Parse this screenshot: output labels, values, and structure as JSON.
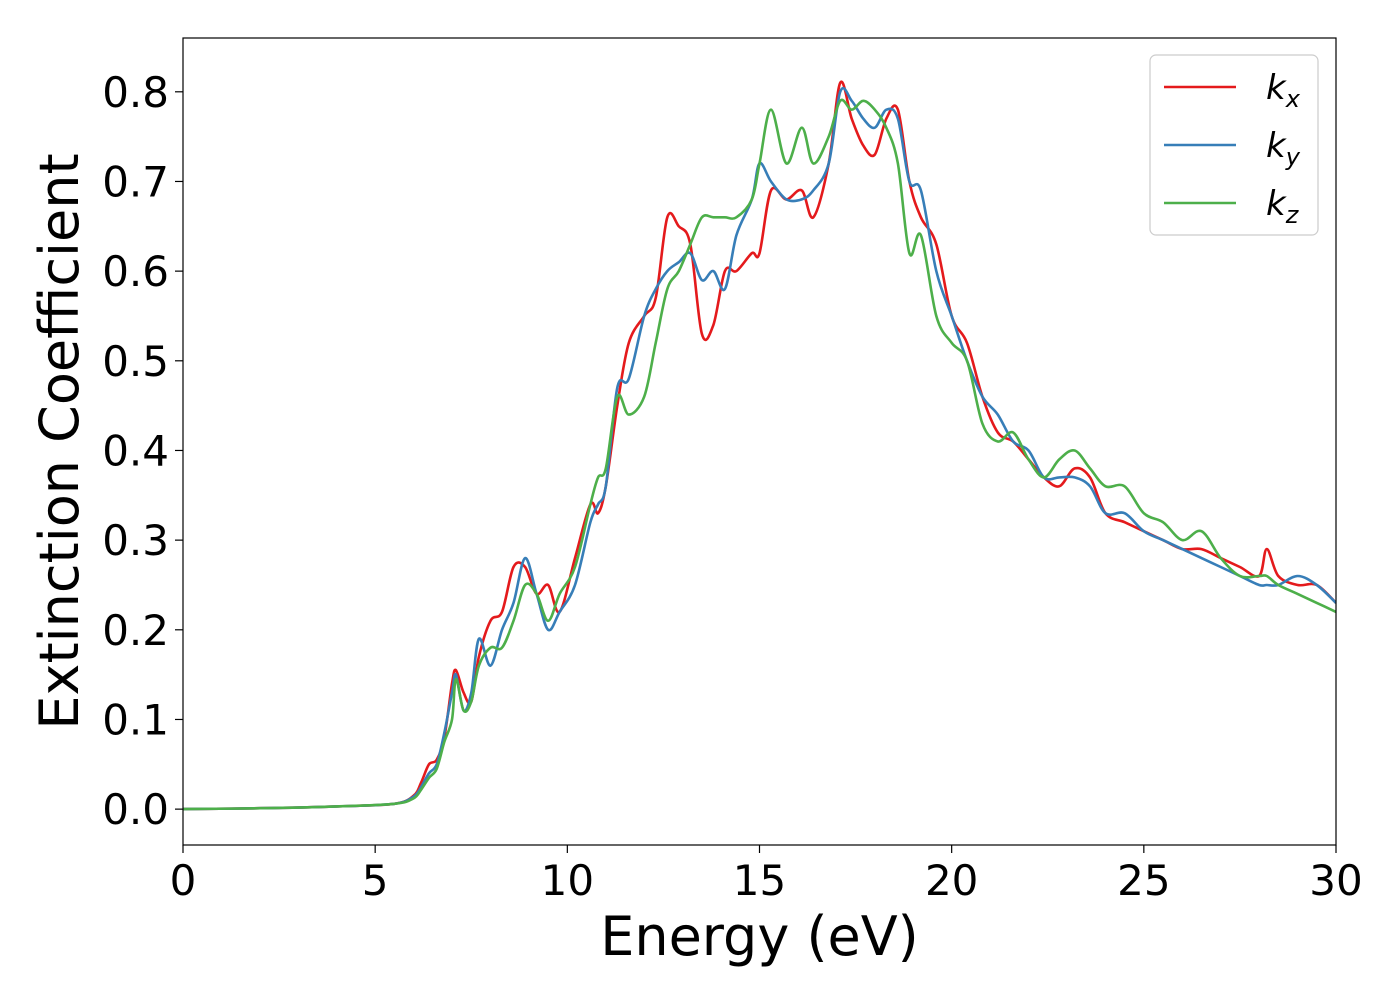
{
  "chart_data": {
    "type": "line",
    "title": "",
    "xlabel": "Energy (eV)",
    "ylabel": "Extinction Coefficient",
    "xlim": [
      0,
      30
    ],
    "ylim": [
      -0.04,
      0.86
    ],
    "xticks": [
      0,
      5,
      10,
      15,
      20,
      25,
      30
    ],
    "xtick_labels": [
      "0",
      "5",
      "10",
      "15",
      "20",
      "25",
      "30"
    ],
    "yticks": [
      0.0,
      0.1,
      0.2,
      0.3,
      0.4,
      0.5,
      0.6,
      0.7,
      0.8
    ],
    "ytick_labels": [
      "0.0",
      "0.1",
      "0.2",
      "0.3",
      "0.4",
      "0.5",
      "0.6",
      "0.7",
      "0.8"
    ],
    "grid": false,
    "legend_position": "top-right",
    "series": [
      {
        "name": "k_x",
        "legend_main": "k",
        "legend_sub": "x",
        "color": "#e41a1c",
        "x": [
          0,
          2,
          4,
          5.5,
          6.0,
          6.2,
          6.4,
          6.6,
          6.8,
          7.0,
          7.1,
          7.3,
          7.5,
          7.7,
          8.0,
          8.3,
          8.6,
          8.9,
          9.2,
          9.5,
          9.8,
          10.2,
          10.6,
          10.8,
          11.0,
          11.3,
          11.6,
          12.0,
          12.3,
          12.6,
          12.9,
          13.2,
          13.5,
          13.8,
          14.1,
          14.4,
          14.8,
          15.0,
          15.3,
          15.7,
          16.1,
          16.4,
          16.8,
          17.1,
          17.4,
          17.7,
          18.0,
          18.3,
          18.6,
          18.9,
          19.2,
          19.6,
          20.0,
          20.4,
          20.8,
          21.2,
          21.6,
          22.0,
          22.4,
          22.8,
          23.2,
          23.6,
          24.0,
          24.5,
          25.0,
          25.5,
          26.0,
          26.5,
          27.0,
          27.5,
          28.0,
          28.2,
          28.5,
          29.0,
          29.5,
          30.0
        ],
        "values": [
          0.0,
          0.001,
          0.003,
          0.006,
          0.015,
          0.03,
          0.05,
          0.055,
          0.08,
          0.14,
          0.155,
          0.13,
          0.12,
          0.17,
          0.21,
          0.22,
          0.27,
          0.27,
          0.24,
          0.25,
          0.22,
          0.28,
          0.34,
          0.33,
          0.36,
          0.45,
          0.52,
          0.55,
          0.57,
          0.66,
          0.65,
          0.63,
          0.53,
          0.54,
          0.6,
          0.6,
          0.62,
          0.62,
          0.69,
          0.68,
          0.69,
          0.66,
          0.72,
          0.81,
          0.77,
          0.74,
          0.73,
          0.77,
          0.78,
          0.7,
          0.66,
          0.63,
          0.55,
          0.52,
          0.46,
          0.42,
          0.41,
          0.39,
          0.37,
          0.36,
          0.38,
          0.37,
          0.33,
          0.32,
          0.31,
          0.3,
          0.29,
          0.29,
          0.28,
          0.27,
          0.26,
          0.29,
          0.26,
          0.25,
          0.25,
          0.23
        ]
      },
      {
        "name": "k_y",
        "legend_main": "k",
        "legend_sub": "y",
        "color": "#377eb8",
        "x": [
          0,
          2,
          4,
          5.5,
          6.0,
          6.2,
          6.4,
          6.6,
          6.8,
          7.0,
          7.1,
          7.3,
          7.5,
          7.7,
          8.0,
          8.3,
          8.6,
          8.9,
          9.2,
          9.5,
          9.8,
          10.2,
          10.6,
          10.8,
          11.0,
          11.3,
          11.6,
          12.0,
          12.3,
          12.6,
          12.9,
          13.2,
          13.5,
          13.8,
          14.1,
          14.4,
          14.8,
          15.0,
          15.3,
          15.7,
          16.1,
          16.4,
          16.8,
          17.1,
          17.4,
          17.7,
          18.0,
          18.3,
          18.6,
          18.9,
          19.2,
          19.6,
          20.0,
          20.4,
          20.8,
          21.2,
          21.6,
          22.0,
          22.4,
          22.8,
          23.2,
          23.6,
          24.0,
          24.5,
          25.0,
          25.5,
          26.0,
          26.5,
          27.0,
          27.5,
          28.0,
          28.2,
          28.5,
          29.0,
          29.5,
          30.0
        ],
        "values": [
          0.0,
          0.001,
          0.003,
          0.006,
          0.014,
          0.025,
          0.04,
          0.05,
          0.085,
          0.13,
          0.15,
          0.11,
          0.13,
          0.19,
          0.16,
          0.2,
          0.23,
          0.28,
          0.24,
          0.2,
          0.22,
          0.25,
          0.32,
          0.34,
          0.36,
          0.47,
          0.48,
          0.55,
          0.58,
          0.6,
          0.61,
          0.62,
          0.59,
          0.6,
          0.58,
          0.64,
          0.68,
          0.72,
          0.7,
          0.68,
          0.68,
          0.69,
          0.72,
          0.8,
          0.79,
          0.77,
          0.76,
          0.78,
          0.77,
          0.7,
          0.69,
          0.6,
          0.55,
          0.5,
          0.46,
          0.44,
          0.41,
          0.4,
          0.37,
          0.37,
          0.37,
          0.36,
          0.33,
          0.33,
          0.31,
          0.3,
          0.29,
          0.28,
          0.27,
          0.26,
          0.25,
          0.25,
          0.25,
          0.26,
          0.25,
          0.23
        ]
      },
      {
        "name": "k_z",
        "legend_main": "k",
        "legend_sub": "z",
        "color": "#4daf4a",
        "x": [
          0,
          2,
          4,
          5.5,
          6.0,
          6.2,
          6.4,
          6.6,
          6.8,
          7.0,
          7.1,
          7.3,
          7.5,
          7.7,
          8.0,
          8.3,
          8.6,
          8.9,
          9.2,
          9.5,
          9.8,
          10.2,
          10.6,
          10.8,
          11.0,
          11.3,
          11.6,
          12.0,
          12.3,
          12.6,
          12.9,
          13.2,
          13.5,
          13.8,
          14.1,
          14.4,
          14.8,
          15.0,
          15.3,
          15.7,
          16.1,
          16.4,
          16.8,
          17.1,
          17.4,
          17.7,
          18.0,
          18.3,
          18.6,
          18.9,
          19.2,
          19.6,
          20.0,
          20.4,
          20.8,
          21.2,
          21.6,
          22.0,
          22.4,
          22.8,
          23.2,
          23.6,
          24.0,
          24.5,
          25.0,
          25.5,
          26.0,
          26.5,
          27.0,
          27.5,
          28.0,
          28.2,
          28.5,
          29.0,
          29.5,
          30.0
        ],
        "values": [
          0.0,
          0.001,
          0.003,
          0.006,
          0.012,
          0.022,
          0.035,
          0.045,
          0.075,
          0.1,
          0.145,
          0.11,
          0.12,
          0.16,
          0.18,
          0.18,
          0.21,
          0.25,
          0.24,
          0.21,
          0.24,
          0.27,
          0.34,
          0.37,
          0.38,
          0.46,
          0.44,
          0.46,
          0.52,
          0.58,
          0.6,
          0.63,
          0.66,
          0.66,
          0.66,
          0.66,
          0.68,
          0.72,
          0.78,
          0.72,
          0.76,
          0.72,
          0.75,
          0.79,
          0.78,
          0.79,
          0.78,
          0.76,
          0.72,
          0.62,
          0.64,
          0.55,
          0.52,
          0.5,
          0.43,
          0.41,
          0.42,
          0.39,
          0.37,
          0.39,
          0.4,
          0.38,
          0.36,
          0.36,
          0.33,
          0.32,
          0.3,
          0.31,
          0.28,
          0.26,
          0.26,
          0.26,
          0.25,
          0.24,
          0.23,
          0.22
        ]
      }
    ]
  }
}
